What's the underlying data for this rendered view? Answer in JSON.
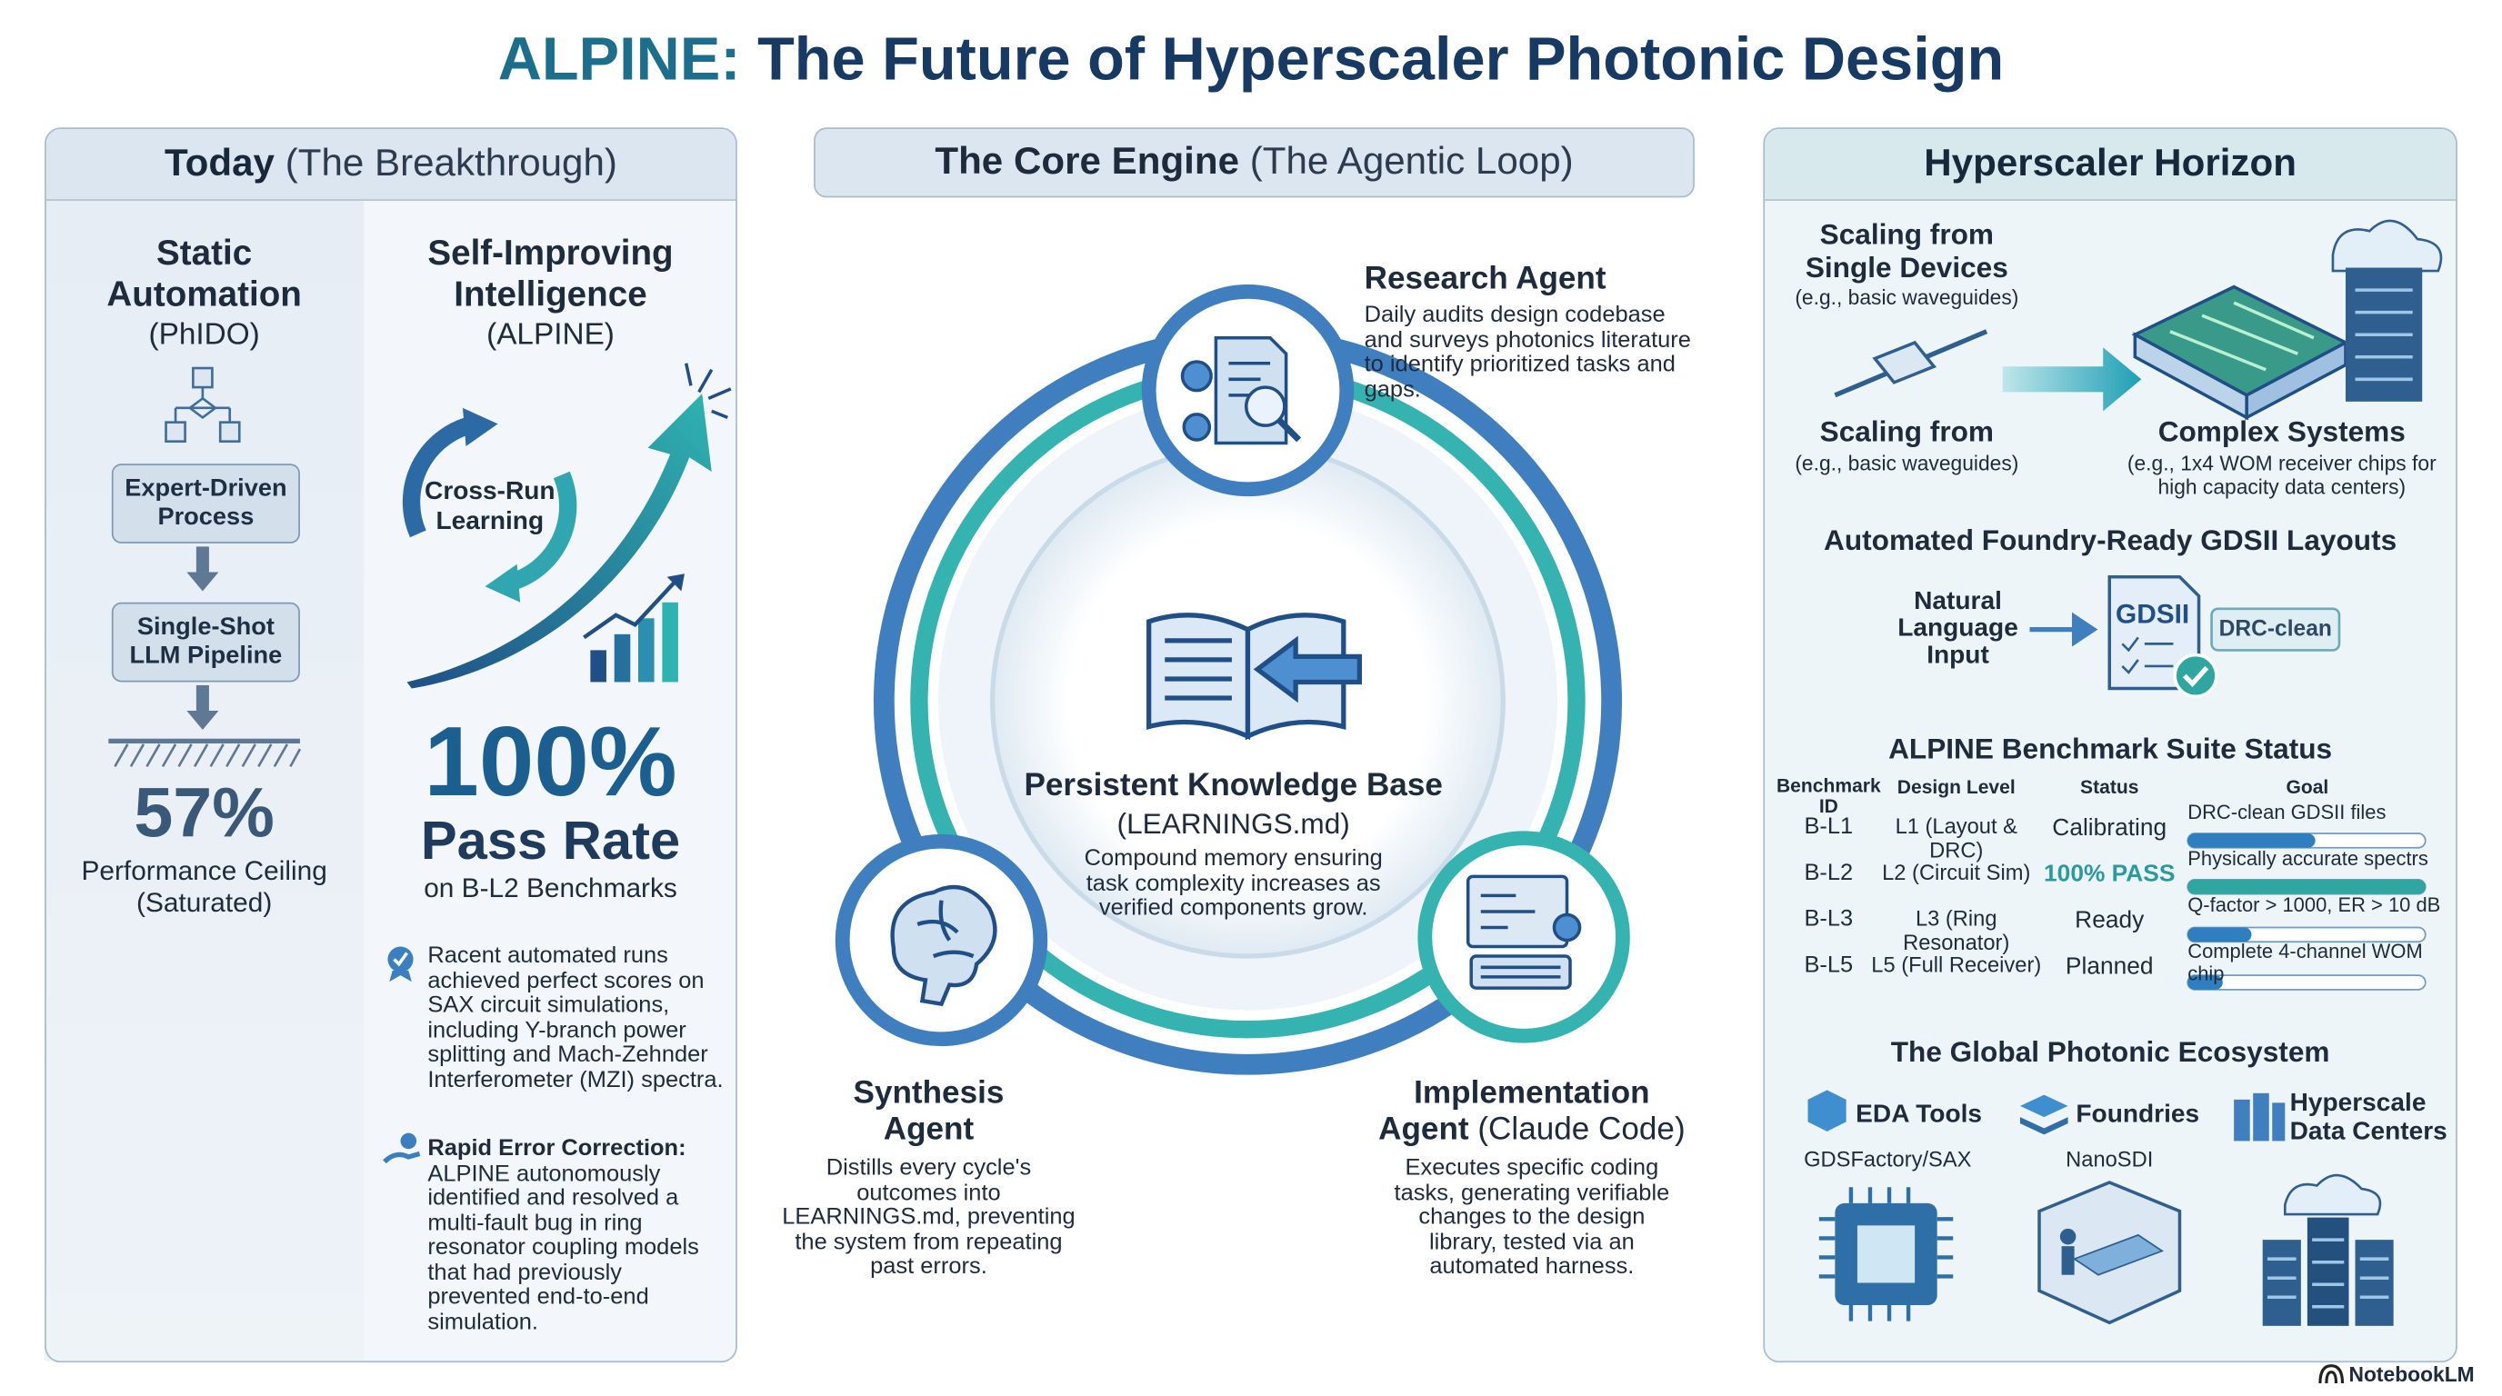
{
  "title": {
    "prefix": "ALPINE:",
    "rest": "The Future of Hyperscaler Photonic Design"
  },
  "today": {
    "header": {
      "bold": "Today",
      "light": "(The Breakthrough)"
    },
    "static": {
      "title": [
        "Static",
        "Automation"
      ],
      "subtitle": "(PhIDO)",
      "steps": [
        "Expert-Driven Process",
        "Single-Shot LLM Pipeline"
      ],
      "stat": "57%",
      "stat_label": [
        "Performance Ceiling",
        "(Saturated)"
      ]
    },
    "self_improving": {
      "title": [
        "Self-Improving",
        "Intelligence"
      ],
      "subtitle": "(ALPINE)",
      "loop_label": [
        "Cross-Run",
        "Learning"
      ],
      "stat": "100%",
      "stat_label": "Pass Rate",
      "stat_sub": "on B-L2 Benchmarks",
      "notes": [
        {
          "text": "Racent automated runs achieved perfect scores on SAX circuit simulations, including Y-branch power splitting and Mach-Zehnder Interferometer (MZI) spectra."
        },
        {
          "title": "Rapid Error Correction:",
          "text": "ALPINE autonomously identified and resolved a multi-fault bug in ring resonator coupling models that had previously prevented end-to-end simulation."
        }
      ]
    }
  },
  "core": {
    "header": {
      "bold": "The Core Engine",
      "light": "(The Agentic Loop)"
    },
    "knowledge_base": {
      "title": "Persistent Knowledge Base",
      "subtitle": "(LEARNINGS.md)",
      "text": "Compound memory ensuring task complexity increases as verified components grow."
    },
    "research": {
      "title": "Research Agent",
      "text": "Daily audits design codebase and surveys photonics literature to identify prioritized tasks and gaps."
    },
    "synthesis": {
      "title": [
        "Synthesis",
        "Agent"
      ],
      "text": "Distills every cycle's outcomes into LEARNINGS.md, preventing the system from repeating past errors."
    },
    "implementation": {
      "title": [
        "Implementation",
        "Agent"
      ],
      "note": "(Claude Code)",
      "text": "Executes specific coding tasks, generating verifiable changes to the design library, tested via an automated harness."
    }
  },
  "horizon": {
    "header": "Hyperscaler Horizon",
    "scaling": {
      "from_title": "Scaling from Single Devices",
      "from_sub": "(e.g., basic waveguides)",
      "from2_title": "Scaling from",
      "from2_sub": "(e.g., basic waveguides)",
      "to_title": "Complex Systems",
      "to_sub": "(e.g., 1x4 WOM receiver chips for high capacity data centers)"
    },
    "gdsii": {
      "title": "Automated Foundry-Ready GDSII Layouts",
      "input": "Natural Language Input",
      "doc": "GDSII",
      "badge": "DRC-clean"
    },
    "benchmarks": {
      "title": "ALPINE Benchmark Suite Status",
      "columns": [
        "Benchmark ID",
        "Design Level",
        "Status",
        "Goal"
      ],
      "rows": [
        [
          "B-L1",
          "L1 (Layout & DRC)",
          "Calibrating",
          "DRC-clean GDSII files"
        ],
        [
          "B-L2",
          "L2 (Circuit Sim)",
          "100% PASS",
          "Physically accurate spectrs"
        ],
        [
          "B-L3",
          "L3 (Ring Resonator)",
          "Ready",
          "Q-factor > 1000, ER > 10 dB"
        ],
        [
          "B-L5",
          "L5 (Full Receiver)",
          "Planned",
          "Complete 4-channel WOM chip"
        ]
      ]
    },
    "ecosystem": {
      "title": "The Global Photonic Ecosystem",
      "items": [
        {
          "name": [
            "EDA Tools"
          ],
          "sub": "GDSFactory/SAX"
        },
        {
          "name": [
            "Foundries"
          ],
          "sub": "NanoSDI"
        },
        {
          "name": [
            "Hyperscale",
            "Data Centers"
          ]
        }
      ]
    }
  },
  "footer": "NotebookLM"
}
